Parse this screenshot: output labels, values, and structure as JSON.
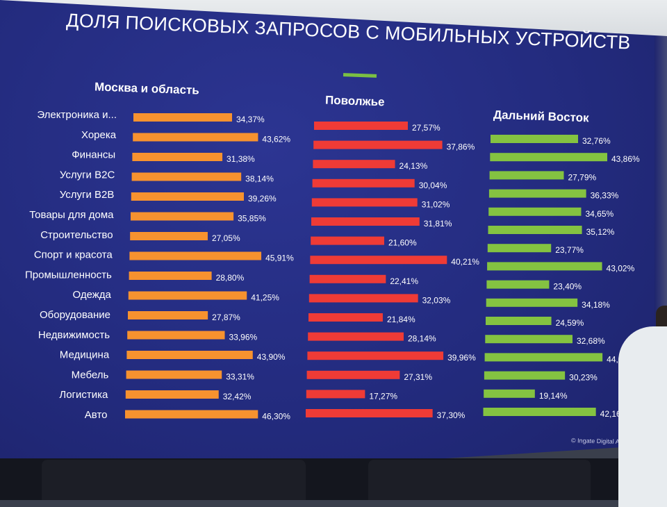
{
  "title": "ДОЛЯ ПОИСКОВЫХ ЗАПРОСОВ С МОБИЛЬНЫХ УСТРОЙСТВ",
  "watermark": "© Ingate Digital A",
  "colors": {
    "moscow": "#f7922f",
    "volga": "#ef3b36",
    "fareast": "#84c341",
    "background": "#262e86"
  },
  "chart_data": {
    "type": "bar",
    "orientation": "horizontal",
    "categories": [
      "Электроника и...",
      "Хорека",
      "Финансы",
      "Услуги B2C",
      "Услуги B2B",
      "Товары для дома",
      "Строительство",
      "Спорт и красота",
      "Промышленность",
      "Одежда",
      "Оборудование",
      "Недвижимость",
      "Медицина",
      "Мебель",
      "Логистика",
      "Авто"
    ],
    "series": [
      {
        "name": "Москва и область",
        "color": "#f7922f",
        "values": [
          34.37,
          43.62,
          31.38,
          38.14,
          39.26,
          35.85,
          27.05,
          45.91,
          28.8,
          41.25,
          27.87,
          33.96,
          43.9,
          33.31,
          32.42,
          46.3
        ],
        "labels": [
          "34,37%",
          "43,62%",
          "31,38%",
          "38,14%",
          "39,26%",
          "35,85%",
          "27,05%",
          "45,91%",
          "28,80%",
          "41,25%",
          "27,87%",
          "33,96%",
          "43,90%",
          "33,31%",
          "32,42%",
          "46,30%"
        ]
      },
      {
        "name": "Поволжье",
        "color": "#ef3b36",
        "values": [
          27.57,
          37.86,
          24.13,
          30.04,
          31.02,
          31.81,
          21.6,
          40.21,
          22.41,
          32.03,
          21.84,
          28.14,
          39.96,
          27.31,
          17.27,
          37.3
        ],
        "labels": [
          "27,57%",
          "37,86%",
          "24,13%",
          "30,04%",
          "31,02%",
          "31,81%",
          "21,60%",
          "40,21%",
          "22,41%",
          "32,03%",
          "21,84%",
          "28,14%",
          "39,96%",
          "27,31%",
          "17,27%",
          "37,30%"
        ]
      },
      {
        "name": "Дальний Восток",
        "color": "#84c341",
        "values": [
          32.76,
          43.86,
          27.79,
          36.33,
          34.65,
          35.12,
          23.77,
          43.02,
          23.4,
          34.18,
          24.59,
          32.68,
          44.08,
          30.23,
          19.14,
          42.16
        ],
        "labels": [
          "32,76%",
          "43,86%",
          "27,79%",
          "36,33%",
          "34,65%",
          "35,12%",
          "23,77%",
          "43,02%",
          "23,40%",
          "34,18%",
          "24,59%",
          "32,68%",
          "44,08%",
          "30,23%",
          "19,14%",
          "42,16%"
        ]
      }
    ],
    "xlim": [
      0,
      50
    ],
    "grid": false,
    "legend": "none"
  }
}
